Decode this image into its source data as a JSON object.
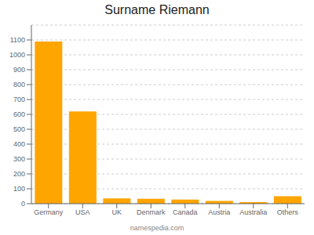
{
  "chart_data": {
    "type": "bar",
    "title": "Surname Riemann",
    "categories": [
      "Germany",
      "USA",
      "UK",
      "Denmark",
      "Canada",
      "Austria",
      "Australia",
      "Others"
    ],
    "values": [
      1090,
      620,
      35,
      33,
      28,
      18,
      10,
      50
    ],
    "color": "#FFA500",
    "ylim": [
      0,
      1200
    ],
    "yticks": [
      0,
      100,
      200,
      300,
      400,
      500,
      600,
      700,
      800,
      900,
      1000,
      1100
    ],
    "grid": true,
    "annotations": [
      "namespedia.com"
    ]
  }
}
